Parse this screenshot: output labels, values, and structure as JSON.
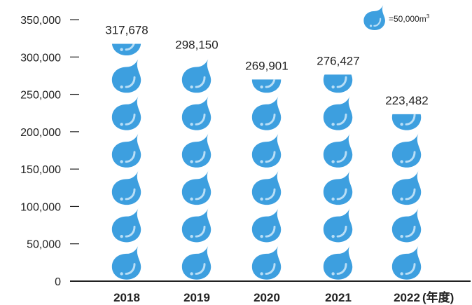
{
  "chart_data": {
    "type": "bar",
    "categories": [
      "2018",
      "2019",
      "2020",
      "2021",
      "2022"
    ],
    "values": [
      317678,
      298150,
      269901,
      276427,
      223482
    ],
    "value_labels": [
      "317,678",
      "298,150",
      "269,901",
      "276,427",
      "223,482"
    ],
    "x_suffix": "(年度)",
    "ylim": [
      0,
      350000
    ],
    "yticks": [
      0,
      50000,
      100000,
      150000,
      200000,
      250000,
      300000,
      350000
    ],
    "ytick_labels": [
      "0",
      "50,000",
      "100,000",
      "150,000",
      "200,000",
      "250,000",
      "300,000",
      "350,000"
    ],
    "icon_unit": 50000,
    "icon": "water-drop-icon",
    "legend": {
      "text": "=50,000m",
      "superscript": "3",
      "placement": "top-right"
    },
    "colors": {
      "drop": "#3d9fdf",
      "drop_highlight": "#b9def6",
      "axis": "#222222"
    }
  }
}
